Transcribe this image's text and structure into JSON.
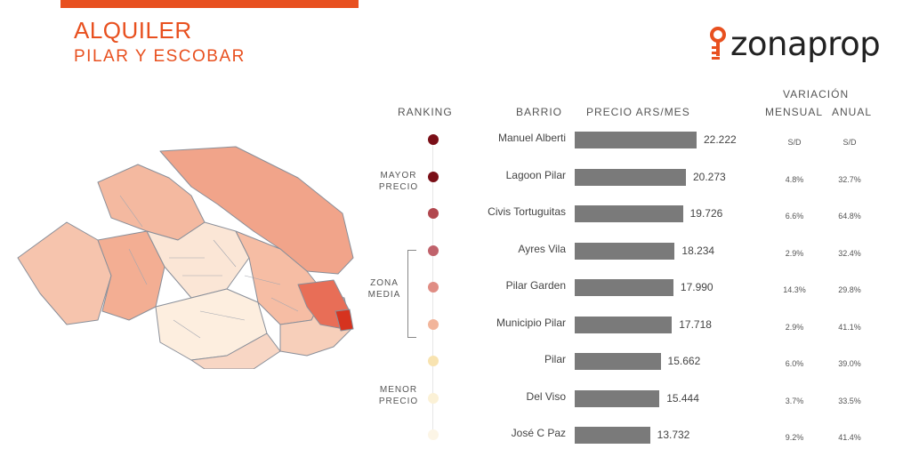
{
  "header": {
    "title": "ALQUILER",
    "subtitle": "PILAR Y ESCOBAR",
    "logo_text": "zonaprop"
  },
  "columns": {
    "ranking": "RANKING",
    "barrio": "BARRIO",
    "precio": "PRECIO ARS/MES",
    "variacion": "VARIACIÓN",
    "mensual": "MENSUAL",
    "anual": "ANUAL"
  },
  "groups": {
    "mayor_1": "MAYOR",
    "mayor_2": "PRECIO",
    "media_1": "ZONA",
    "media_2": "MEDIA",
    "menor_1": "MENOR",
    "menor_2": "PRECIO"
  },
  "chart_data": {
    "type": "bar",
    "orientation": "horizontal",
    "categories": [
      "Manuel Alberti",
      "Lagoon Pilar",
      "Civis Tortuguitas",
      "Ayres Vila",
      "Pilar Garden",
      "Municipio Pilar",
      "Pilar",
      "Del Viso",
      "José C Paz"
    ],
    "values": [
      22222,
      20273,
      19726,
      18234,
      17990,
      17718,
      15662,
      15444,
      13732
    ],
    "value_labels": [
      "22.222",
      "20.273",
      "19.726",
      "18.234",
      "17.990",
      "17.718",
      "15.662",
      "15.444",
      "13.732"
    ],
    "mensual": [
      "S/D",
      "4.8%",
      "6.6%",
      "2.9%",
      "14.3%",
      "2.9%",
      "6.0%",
      "3.7%",
      "9.2%"
    ],
    "anual": [
      "S/D",
      "32.7%",
      "64.8%",
      "32.4%",
      "29.8%",
      "41.1%",
      "39.0%",
      "33.5%",
      "41.4%"
    ],
    "dot_colors": [
      "#7a0f17",
      "#7a0f17",
      "#b1474e",
      "#c0626b",
      "#e08d84",
      "#f2b59b",
      "#f8e3b0",
      "#fbf1d6",
      "#fcf5e6"
    ],
    "bar_color": "#7a7a7a"
  }
}
